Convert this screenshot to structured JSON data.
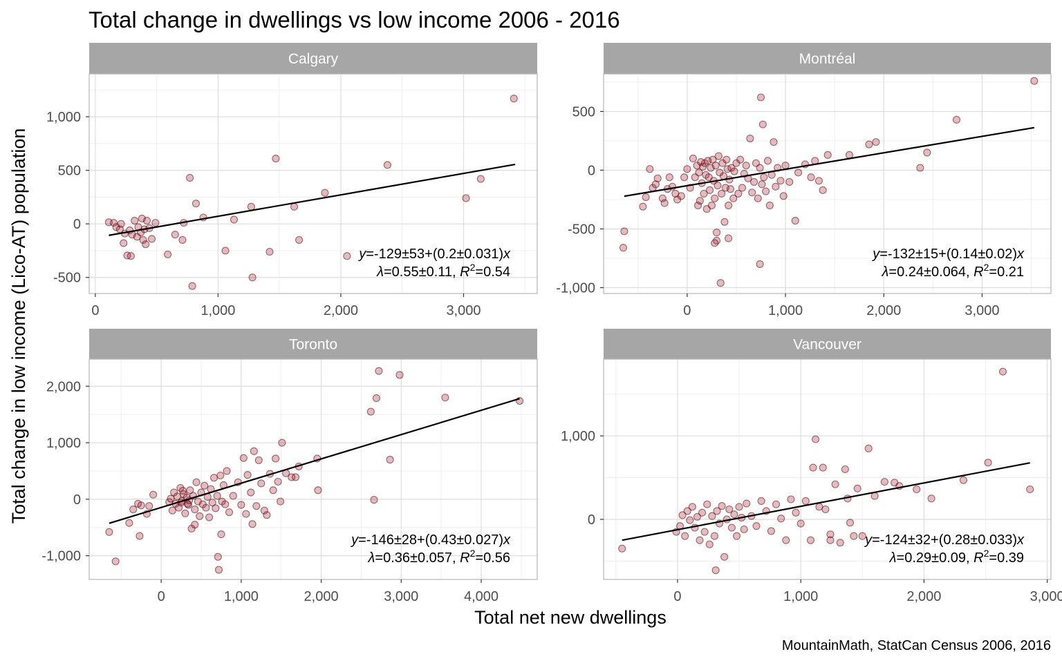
{
  "title": "Total change in dwellings vs low income 2006 - 2016",
  "xlabel": "Total net new dwellings",
  "ylabel": "Total change in low income (Lico-AT) population",
  "caption": "MountainMath, StatCan Census 2006, 2016",
  "colors": {
    "strip_bg": "#a6a6a6",
    "strip_text": "#ffffff",
    "point_fill": "#b2182b",
    "point_stroke": "#3d0a0a",
    "line": "#000000",
    "grid_major": "#dcdcdc",
    "grid_minor": "#efefef",
    "panel_border": "#b3b3b3"
  },
  "chart_data": [
    {
      "type": "scatter",
      "panel": "Calgary",
      "xlim": [
        -50,
        3600
      ],
      "ylim": [
        -650,
        1400
      ],
      "xticks": [
        0,
        1000,
        2000,
        3000
      ],
      "xtick_labels": [
        "0",
        "1,000",
        "2,000",
        "3,000"
      ],
      "yticks": [
        -500,
        0,
        500,
        1000
      ],
      "ytick_labels": [
        "-500",
        "0",
        "500",
        "1,000"
      ],
      "fit": {
        "intercept": -129,
        "slope": 0.2,
        "x_range": [
          110,
          3420
        ]
      },
      "annotation": {
        "eq_y": "y",
        "eq_rest": "=-129±53+(0.2±0.031)",
        "eq_x": "x",
        "lambda": "λ",
        "lambda_rest": "=0.55±0.11, ",
        "r": "R",
        "r_sup": "2",
        "r_rest": "=0.54"
      },
      "points": [
        [
          110,
          15
        ],
        [
          150,
          10
        ],
        [
          170,
          -30
        ],
        [
          200,
          -50
        ],
        [
          210,
          0
        ],
        [
          230,
          -180
        ],
        [
          240,
          -90
        ],
        [
          260,
          -295
        ],
        [
          280,
          -60
        ],
        [
          290,
          -300
        ],
        [
          300,
          -100
        ],
        [
          320,
          30
        ],
        [
          340,
          -120
        ],
        [
          350,
          -30
        ],
        [
          370,
          -80
        ],
        [
          380,
          50
        ],
        [
          390,
          -150
        ],
        [
          400,
          -50
        ],
        [
          410,
          -190
        ],
        [
          420,
          30
        ],
        [
          440,
          -40
        ],
        [
          460,
          -140
        ],
        [
          490,
          10
        ],
        [
          590,
          -285
        ],
        [
          650,
          -100
        ],
        [
          710,
          -150
        ],
        [
          720,
          10
        ],
        [
          770,
          430
        ],
        [
          790,
          -580
        ],
        [
          820,
          190
        ],
        [
          880,
          60
        ],
        [
          1060,
          -250
        ],
        [
          1130,
          40
        ],
        [
          1270,
          160
        ],
        [
          1280,
          -500
        ],
        [
          1420,
          -260
        ],
        [
          1470,
          610
        ],
        [
          1620,
          160
        ],
        [
          1660,
          -150
        ],
        [
          1870,
          290
        ],
        [
          2050,
          -300
        ],
        [
          2380,
          550
        ],
        [
          3020,
          240
        ],
        [
          3140,
          420
        ],
        [
          3410,
          1170
        ]
      ]
    },
    {
      "type": "scatter",
      "panel": "Montréal",
      "xlim": [
        -850,
        3700
      ],
      "ylim": [
        -1050,
        820
      ],
      "xticks": [
        0,
        1000,
        2000,
        3000
      ],
      "xtick_labels": [
        "0",
        "1,000",
        "2,000",
        "3,000"
      ],
      "yticks": [
        -1000,
        -500,
        0,
        500
      ],
      "ytick_labels": [
        "-1,000",
        "-500",
        "0",
        "500"
      ],
      "fit": {
        "intercept": -132,
        "slope": 0.14,
        "x_range": [
          -640,
          3530
        ]
      },
      "annotation": {
        "eq_y": "y",
        "eq_rest": "=-132±15+(0.14±0.02)",
        "eq_x": "x",
        "lambda": "λ",
        "lambda_rest": "=0.24±0.064, ",
        "r": "R",
        "r_sup": "2",
        "r_rest": "=0.21"
      },
      "points": [
        [
          -640,
          -520
        ],
        [
          -650,
          -660
        ],
        [
          -450,
          -310
        ],
        [
          -420,
          -230
        ],
        [
          -380,
          10
        ],
        [
          -350,
          -150
        ],
        [
          -320,
          -120
        ],
        [
          -300,
          -70
        ],
        [
          -250,
          -240
        ],
        [
          -230,
          -280
        ],
        [
          -200,
          -160
        ],
        [
          -180,
          -60
        ],
        [
          -150,
          -140
        ],
        [
          -120,
          -200
        ],
        [
          -100,
          -250
        ],
        [
          -60,
          -220
        ],
        [
          -30,
          -60
        ],
        [
          0,
          10
        ],
        [
          30,
          -150
        ],
        [
          60,
          100
        ],
        [
          80,
          -60
        ],
        [
          100,
          40
        ],
        [
          110,
          -300
        ],
        [
          120,
          -20
        ],
        [
          130,
          -260
        ],
        [
          140,
          70
        ],
        [
          150,
          -110
        ],
        [
          160,
          30
        ],
        [
          170,
          -200
        ],
        [
          180,
          60
        ],
        [
          190,
          -40
        ],
        [
          200,
          -330
        ],
        [
          210,
          80
        ],
        [
          220,
          -60
        ],
        [
          230,
          -170
        ],
        [
          240,
          20
        ],
        [
          250,
          -300
        ],
        [
          260,
          90
        ],
        [
          270,
          -90
        ],
        [
          280,
          -240
        ],
        [
          290,
          40
        ],
        [
          300,
          -600
        ],
        [
          310,
          -130
        ],
        [
          320,
          120
        ],
        [
          330,
          -20
        ],
        [
          340,
          -960
        ],
        [
          350,
          -200
        ],
        [
          360,
          60
        ],
        [
          370,
          -50
        ],
        [
          380,
          -440
        ],
        [
          390,
          -150
        ],
        [
          400,
          90
        ],
        [
          410,
          10
        ],
        [
          420,
          -300
        ],
        [
          430,
          -80
        ],
        [
          440,
          -160
        ],
        [
          450,
          20
        ],
        [
          470,
          -240
        ],
        [
          480,
          -10
        ],
        [
          500,
          60
        ],
        [
          520,
          -200
        ],
        [
          540,
          90
        ],
        [
          560,
          -150
        ],
        [
          580,
          -30
        ],
        [
          600,
          40
        ],
        [
          620,
          -70
        ],
        [
          640,
          270
        ],
        [
          660,
          -190
        ],
        [
          680,
          -100
        ],
        [
          700,
          60
        ],
        [
          720,
          -240
        ],
        [
          740,
          20
        ],
        [
          750,
          620
        ],
        [
          760,
          -120
        ],
        [
          770,
          390
        ],
        [
          780,
          -60
        ],
        [
          800,
          -180
        ],
        [
          820,
          80
        ],
        [
          840,
          -300
        ],
        [
          860,
          -40
        ],
        [
          880,
          240
        ],
        [
          900,
          -140
        ],
        [
          920,
          20
        ],
        [
          950,
          -90
        ],
        [
          980,
          -220
        ],
        [
          1000,
          40
        ],
        [
          1040,
          -100
        ],
        [
          1100,
          -430
        ],
        [
          1130,
          -20
        ],
        [
          1200,
          50
        ],
        [
          1260,
          -60
        ],
        [
          1300,
          80
        ],
        [
          1340,
          -90
        ],
        [
          1380,
          -170
        ],
        [
          1430,
          130
        ],
        [
          1650,
          130
        ],
        [
          1850,
          220
        ],
        [
          1920,
          240
        ],
        [
          2370,
          20
        ],
        [
          2440,
          150
        ],
        [
          2740,
          430
        ],
        [
          3530,
          760
        ],
        [
          740,
          -800
        ],
        [
          420,
          -580
        ],
        [
          300,
          -530
        ],
        [
          280,
          -620
        ]
      ]
    },
    {
      "type": "scatter",
      "panel": "Toronto",
      "xlim": [
        -900,
        4700
      ],
      "ylim": [
        -1420,
        2480
      ],
      "xticks": [
        0,
        1000,
        2000,
        3000,
        4000
      ],
      "xtick_labels": [
        "0",
        "1,000",
        "2,000",
        "3,000",
        "4,000"
      ],
      "yticks": [
        -1000,
        0,
        1000,
        2000
      ],
      "ytick_labels": [
        "-1,000",
        "0",
        "1,000",
        "2,000"
      ],
      "fit": {
        "intercept": -146,
        "slope": 0.43,
        "x_range": [
          -650,
          4480
        ]
      },
      "annotation": {
        "eq_y": "y",
        "eq_rest": "=-146±28+(0.43±0.027)",
        "eq_x": "x",
        "lambda": "λ",
        "lambda_rest": "=0.36±0.057, ",
        "r": "R",
        "r_sup": "2",
        "r_rest": "=0.56"
      },
      "points": [
        [
          -650,
          -580
        ],
        [
          -570,
          -1100
        ],
        [
          -400,
          -420
        ],
        [
          -350,
          -180
        ],
        [
          -290,
          -80
        ],
        [
          -270,
          -650
        ],
        [
          -250,
          -110
        ],
        [
          -180,
          -260
        ],
        [
          -150,
          -120
        ],
        [
          -100,
          80
        ],
        [
          100,
          -50
        ],
        [
          120,
          10
        ],
        [
          140,
          -200
        ],
        [
          160,
          120
        ],
        [
          180,
          -80
        ],
        [
          200,
          50
        ],
        [
          220,
          -150
        ],
        [
          240,
          200
        ],
        [
          260,
          -30
        ],
        [
          280,
          90
        ],
        [
          300,
          -250
        ],
        [
          320,
          30
        ],
        [
          340,
          -100
        ],
        [
          360,
          160
        ],
        [
          380,
          -520
        ],
        [
          400,
          60
        ],
        [
          420,
          -180
        ],
        [
          440,
          300
        ],
        [
          460,
          -40
        ],
        [
          480,
          -300
        ],
        [
          500,
          120
        ],
        [
          520,
          -90
        ],
        [
          540,
          240
        ],
        [
          560,
          -150
        ],
        [
          580,
          40
        ],
        [
          600,
          -320
        ],
        [
          620,
          180
        ],
        [
          640,
          -60
        ],
        [
          660,
          380
        ],
        [
          680,
          -160
        ],
        [
          700,
          60
        ],
        [
          710,
          -1020
        ],
        [
          720,
          -1250
        ],
        [
          740,
          420
        ],
        [
          750,
          -620
        ],
        [
          760,
          -40
        ],
        [
          780,
          250
        ],
        [
          800,
          -90
        ],
        [
          820,
          500
        ],
        [
          850,
          -230
        ],
        [
          900,
          60
        ],
        [
          960,
          300
        ],
        [
          1000,
          -100
        ],
        [
          1030,
          730
        ],
        [
          1060,
          -260
        ],
        [
          1080,
          430
        ],
        [
          1120,
          120
        ],
        [
          1140,
          -440
        ],
        [
          1160,
          850
        ],
        [
          1190,
          -120
        ],
        [
          1220,
          690
        ],
        [
          1250,
          280
        ],
        [
          1290,
          -200
        ],
        [
          1320,
          -280
        ],
        [
          1360,
          450
        ],
        [
          1400,
          160
        ],
        [
          1430,
          720
        ],
        [
          1460,
          310
        ],
        [
          1490,
          -40
        ],
        [
          1510,
          1000
        ],
        [
          1560,
          460
        ],
        [
          1630,
          390
        ],
        [
          1680,
          390
        ],
        [
          1720,
          580
        ],
        [
          1950,
          720
        ],
        [
          1960,
          160
        ],
        [
          2620,
          1550
        ],
        [
          2660,
          -10
        ],
        [
          2690,
          1790
        ],
        [
          2720,
          2270
        ],
        [
          2860,
          700
        ],
        [
          2980,
          2200
        ],
        [
          3550,
          1800
        ],
        [
          4480,
          1740
        ],
        [
          420,
          -450
        ],
        [
          330,
          -80
        ],
        [
          250,
          -60
        ],
        [
          270,
          150
        ],
        [
          350,
          -20
        ]
      ]
    },
    {
      "type": "scatter",
      "panel": "Vancouver",
      "xlim": [
        -600,
        3030
      ],
      "ylim": [
        -720,
        1920
      ],
      "xticks": [
        0,
        1000,
        2000,
        3000
      ],
      "xtick_labels": [
        "0",
        "1,000",
        "2,000",
        "3,000"
      ],
      "yticks": [
        0,
        1000
      ],
      "ytick_labels": [
        "0",
        "1,000"
      ],
      "fit": {
        "intercept": -124,
        "slope": 0.28,
        "x_range": [
          -450,
          2860
        ]
      },
      "annotation": {
        "eq_y": "y",
        "eq_rest": "=-124±32+(0.28±0.033)",
        "eq_x": "x",
        "lambda": "λ",
        "lambda_rest": "=0.29±0.09, ",
        "r": "R",
        "r_sup": "2",
        "r_rest": "=0.39"
      },
      "points": [
        [
          -450,
          -350
        ],
        [
          -10,
          -150
        ],
        [
          20,
          -80
        ],
        [
          40,
          50
        ],
        [
          60,
          -200
        ],
        [
          80,
          100
        ],
        [
          100,
          -10
        ],
        [
          120,
          150
        ],
        [
          140,
          -100
        ],
        [
          160,
          30
        ],
        [
          180,
          -250
        ],
        [
          200,
          80
        ],
        [
          220,
          -150
        ],
        [
          240,
          180
        ],
        [
          260,
          -300
        ],
        [
          280,
          40
        ],
        [
          300,
          -200
        ],
        [
          310,
          -610
        ],
        [
          320,
          100
        ],
        [
          340,
          -50
        ],
        [
          360,
          160
        ],
        [
          380,
          -450
        ],
        [
          400,
          0
        ],
        [
          420,
          120
        ],
        [
          440,
          -100
        ],
        [
          460,
          60
        ],
        [
          480,
          -200
        ],
        [
          500,
          150
        ],
        [
          520,
          20
        ],
        [
          540,
          -120
        ],
        [
          560,
          190
        ],
        [
          600,
          40
        ],
        [
          640,
          -80
        ],
        [
          680,
          220
        ],
        [
          720,
          100
        ],
        [
          760,
          -140
        ],
        [
          800,
          180
        ],
        [
          840,
          10
        ],
        [
          880,
          -250
        ],
        [
          920,
          240
        ],
        [
          960,
          80
        ],
        [
          1000,
          -50
        ],
        [
          1040,
          220
        ],
        [
          1080,
          -250
        ],
        [
          1100,
          620
        ],
        [
          1120,
          960
        ],
        [
          1150,
          150
        ],
        [
          1200,
          120
        ],
        [
          1240,
          -180
        ],
        [
          1280,
          420
        ],
        [
          1320,
          -280
        ],
        [
          1360,
          600
        ],
        [
          1380,
          250
        ],
        [
          1400,
          -40
        ],
        [
          1430,
          -200
        ],
        [
          1460,
          370
        ],
        [
          1500,
          -200
        ],
        [
          1550,
          850
        ],
        [
          1600,
          280
        ],
        [
          1680,
          450
        ],
        [
          1760,
          440
        ],
        [
          1800,
          400
        ],
        [
          1940,
          360
        ],
        [
          2060,
          250
        ],
        [
          2320,
          470
        ],
        [
          2520,
          680
        ],
        [
          2640,
          1770
        ],
        [
          2860,
          360
        ],
        [
          1180,
          620
        ],
        [
          1240,
          -250
        ]
      ]
    }
  ]
}
